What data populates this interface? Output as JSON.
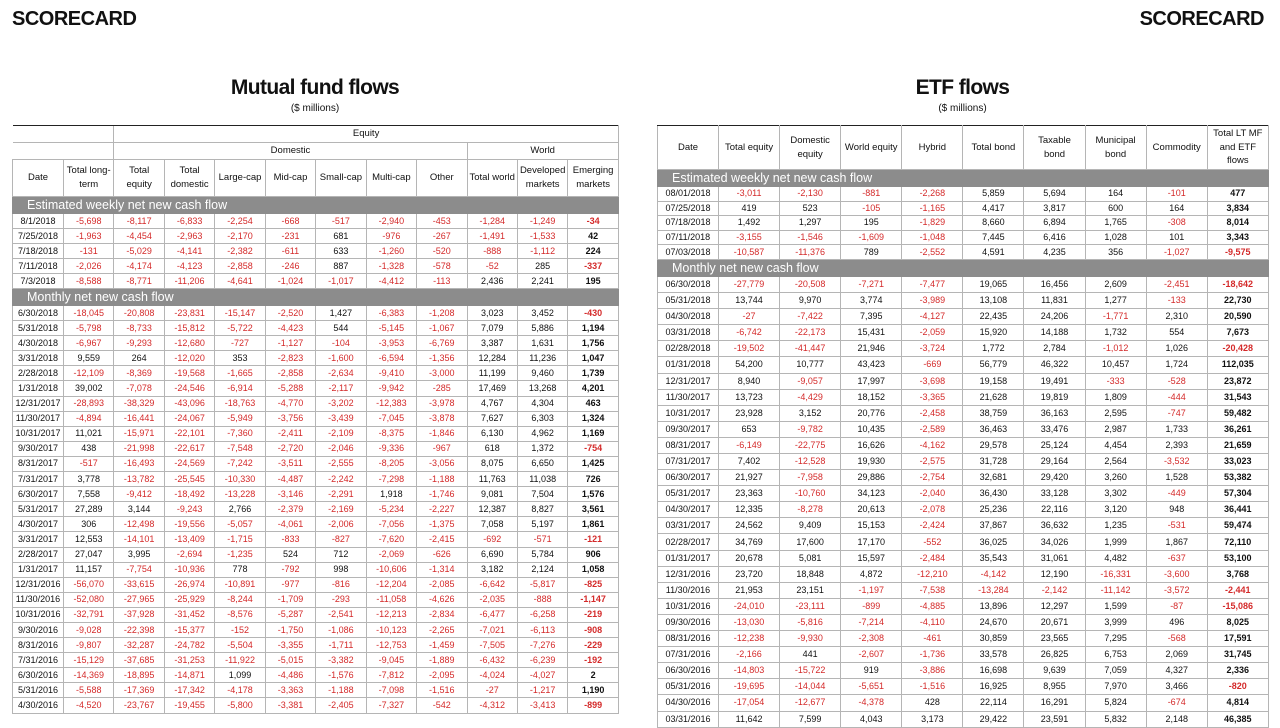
{
  "header": {
    "left_label": "SCORECARD",
    "right_label": "SCORECARD"
  },
  "mutual_fund_flows": {
    "title": "Mutual fund flows",
    "subtitle": "($ millions)",
    "group_headers": {
      "equity": "Equity",
      "domestic": "Domestic",
      "world": "World"
    },
    "columns": [
      "Date",
      "Total long-term",
      "Total equity",
      "Total domestic",
      "Large-cap",
      "Mid-cap",
      "Small-cap",
      "Multi-cap",
      "Other",
      "Total world",
      "Developed markets",
      "Emerging markets"
    ],
    "sections": [
      {
        "title": "Estimated weekly net new cash flow",
        "rows": [
          [
            "8/1/2018",
            "-5,698",
            "-8,117",
            "-6,833",
            "-2,254",
            "-668",
            "-517",
            "-2,940",
            "-453",
            "-1,284",
            "-1,249",
            "-34"
          ],
          [
            "7/25/2018",
            "-1,963",
            "-4,454",
            "-2,963",
            "-2,170",
            "-231",
            "681",
            "-976",
            "-267",
            "-1,491",
            "-1,533",
            "42"
          ],
          [
            "7/18/2018",
            "-131",
            "-5,029",
            "-4,141",
            "-2,382",
            "-611",
            "633",
            "-1,260",
            "-520",
            "-888",
            "-1,112",
            "224"
          ],
          [
            "7/11/2018",
            "-2,026",
            "-4,174",
            "-4,123",
            "-2,858",
            "-246",
            "887",
            "-1,328",
            "-578",
            "-52",
            "285",
            "-337"
          ],
          [
            "7/3/2018",
            "-8,588",
            "-8,771",
            "-11,206",
            "-4,641",
            "-1,024",
            "-1,017",
            "-4,412",
            "-113",
            "2,436",
            "2,241",
            "195"
          ]
        ]
      },
      {
        "title": "Monthly net new cash flow",
        "rows": [
          [
            "6/30/2018",
            "-18,045",
            "-20,808",
            "-23,831",
            "-15,147",
            "-2,520",
            "1,427",
            "-6,383",
            "-1,208",
            "3,023",
            "3,452",
            "-430"
          ],
          [
            "5/31/2018",
            "-5,798",
            "-8,733",
            "-15,812",
            "-5,722",
            "-4,423",
            "544",
            "-5,145",
            "-1,067",
            "7,079",
            "5,886",
            "1,194"
          ],
          [
            "4/30/2018",
            "-6,967",
            "-9,293",
            "-12,680",
            "-727",
            "-1,127",
            "-104",
            "-3,953",
            "-6,769",
            "3,387",
            "1,631",
            "1,756"
          ],
          [
            "3/31/2018",
            "9,559",
            "264",
            "-12,020",
            "353",
            "-2,823",
            "-1,600",
            "-6,594",
            "-1,356",
            "12,284",
            "11,236",
            "1,047"
          ],
          [
            "2/28/2018",
            "-12,109",
            "-8,369",
            "-19,568",
            "-1,665",
            "-2,858",
            "-2,634",
            "-9,410",
            "-3,000",
            "11,199",
            "9,460",
            "1,739"
          ],
          [
            "1/31/2018",
            "39,002",
            "-7,078",
            "-24,546",
            "-6,914",
            "-5,288",
            "-2,117",
            "-9,942",
            "-285",
            "17,469",
            "13,268",
            "4,201"
          ],
          [
            "12/31/2017",
            "-28,893",
            "-38,329",
            "-43,096",
            "-18,763",
            "-4,770",
            "-3,202",
            "-12,383",
            "-3,978",
            "4,767",
            "4,304",
            "463"
          ],
          [
            "11/30/2017",
            "-4,894",
            "-16,441",
            "-24,067",
            "-5,949",
            "-3,756",
            "-3,439",
            "-7,045",
            "-3,878",
            "7,627",
            "6,303",
            "1,324"
          ],
          [
            "10/31/2017",
            "11,021",
            "-15,971",
            "-22,101",
            "-7,360",
            "-2,411",
            "-2,109",
            "-8,375",
            "-1,846",
            "6,130",
            "4,962",
            "1,169"
          ],
          [
            "9/30/2017",
            "438",
            "-21,998",
            "-22,617",
            "-7,548",
            "-2,720",
            "-2,046",
            "-9,336",
            "-967",
            "618",
            "1,372",
            "-754"
          ],
          [
            "8/31/2017",
            "-517",
            "-16,493",
            "-24,569",
            "-7,242",
            "-3,511",
            "-2,555",
            "-8,205",
            "-3,056",
            "8,075",
            "6,650",
            "1,425"
          ],
          [
            "7/31/2017",
            "3,778",
            "-13,782",
            "-25,545",
            "-10,330",
            "-4,487",
            "-2,242",
            "-7,298",
            "-1,188",
            "11,763",
            "11,038",
            "726"
          ],
          [
            "6/30/2017",
            "7,558",
            "-9,412",
            "-18,492",
            "-13,228",
            "-3,146",
            "-2,291",
            "1,918",
            "-1,746",
            "9,081",
            "7,504",
            "1,576"
          ],
          [
            "5/31/2017",
            "27,289",
            "3,144",
            "-9,243",
            "2,766",
            "-2,379",
            "-2,169",
            "-5,234",
            "-2,227",
            "12,387",
            "8,827",
            "3,561"
          ],
          [
            "4/30/2017",
            "306",
            "-12,498",
            "-19,556",
            "-5,057",
            "-4,061",
            "-2,006",
            "-7,056",
            "-1,375",
            "7,058",
            "5,197",
            "1,861"
          ],
          [
            "3/31/2017",
            "12,553",
            "-14,101",
            "-13,409",
            "-1,715",
            "-833",
            "-827",
            "-7,620",
            "-2,415",
            "-692",
            "-571",
            "-121"
          ],
          [
            "2/28/2017",
            "27,047",
            "3,995",
            "-2,694",
            "-1,235",
            "524",
            "712",
            "-2,069",
            "-626",
            "6,690",
            "5,784",
            "906"
          ],
          [
            "1/31/2017",
            "11,157",
            "-7,754",
            "-10,936",
            "778",
            "-792",
            "998",
            "-10,606",
            "-1,314",
            "3,182",
            "2,124",
            "1,058"
          ],
          [
            "12/31/2016",
            "-56,070",
            "-33,615",
            "-26,974",
            "-10,891",
            "-977",
            "-816",
            "-12,204",
            "-2,085",
            "-6,642",
            "-5,817",
            "-825"
          ],
          [
            "11/30/2016",
            "-52,080",
            "-27,965",
            "-25,929",
            "-8,244",
            "-1,709",
            "-293",
            "-11,058",
            "-4,626",
            "-2,035",
            "-888",
            "-1,147"
          ],
          [
            "10/31/2016",
            "-32,791",
            "-37,928",
            "-31,452",
            "-8,576",
            "-5,287",
            "-2,541",
            "-12,213",
            "-2,834",
            "-6,477",
            "-6,258",
            "-219"
          ],
          [
            "9/30/2016",
            "-9,028",
            "-22,398",
            "-15,377",
            "-152",
            "-1,750",
            "-1,086",
            "-10,123",
            "-2,265",
            "-7,021",
            "-6,113",
            "-908"
          ],
          [
            "8/31/2016",
            "-9,807",
            "-32,287",
            "-24,782",
            "-5,504",
            "-3,355",
            "-1,711",
            "-12,753",
            "-1,459",
            "-7,505",
            "-7,276",
            "-229"
          ],
          [
            "7/31/2016",
            "-15,129",
            "-37,685",
            "-31,253",
            "-11,922",
            "-5,015",
            "-3,382",
            "-9,045",
            "-1,889",
            "-6,432",
            "-6,239",
            "-192"
          ],
          [
            "6/30/2016",
            "-14,369",
            "-18,895",
            "-14,871",
            "1,099",
            "-4,486",
            "-1,576",
            "-7,812",
            "-2,095",
            "-4,024",
            "-4,027",
            "2"
          ],
          [
            "5/31/2016",
            "-5,588",
            "-17,369",
            "-17,342",
            "-4,178",
            "-3,363",
            "-1,188",
            "-7,098",
            "-1,516",
            "-27",
            "-1,217",
            "1,190"
          ],
          [
            "4/30/2016",
            "-4,520",
            "-23,767",
            "-19,455",
            "-5,800",
            "-3,381",
            "-2,405",
            "-7,327",
            "-542",
            "-4,312",
            "-3,413",
            "-899"
          ]
        ]
      }
    ]
  },
  "etf_flows": {
    "title": "ETF flows",
    "subtitle": "($ millions)",
    "columns": [
      "Date",
      "Total equity",
      "Domestic equity",
      "World equity",
      "Hybrid",
      "Total bond",
      "Taxable bond",
      "Municipal bond",
      "Commodity",
      "Total LT MF and ETF flows"
    ],
    "sections": [
      {
        "title": "Estimated weekly net new cash flow",
        "rows": [
          [
            "08/01/2018",
            "-3,011",
            "-2,130",
            "-881",
            "-2,268",
            "5,859",
            "5,694",
            "164",
            "-101",
            "477"
          ],
          [
            "07/25/2018",
            "419",
            "523",
            "-105",
            "-1,165",
            "4,417",
            "3,817",
            "600",
            "164",
            "3,834"
          ],
          [
            "07/18/2018",
            "1,492",
            "1,297",
            "195",
            "-1,829",
            "8,660",
            "6,894",
            "1,765",
            "-308",
            "8,014"
          ],
          [
            "07/11/2018",
            "-3,155",
            "-1,546",
            "-1,609",
            "-1,048",
            "7,445",
            "6,416",
            "1,028",
            "101",
            "3,343"
          ],
          [
            "07/03/2018",
            "-10,587",
            "-11,376",
            "789",
            "-2,552",
            "4,591",
            "4,235",
            "356",
            "-1,027",
            "-9,575"
          ]
        ]
      },
      {
        "title": "Monthly net new cash flow",
        "rows": [
          [
            "06/30/2018",
            "-27,779",
            "-20,508",
            "-7,271",
            "-7,477",
            "19,065",
            "16,456",
            "2,609",
            "-2,451",
            "-18,642"
          ],
          [
            "05/31/2018",
            "13,744",
            "9,970",
            "3,774",
            "-3,989",
            "13,108",
            "11,831",
            "1,277",
            "-133",
            "22,730"
          ],
          [
            "04/30/2018",
            "-27",
            "-7,422",
            "7,395",
            "-4,127",
            "22,435",
            "24,206",
            "-1,771",
            "2,310",
            "20,590"
          ],
          [
            "03/31/2018",
            "-6,742",
            "-22,173",
            "15,431",
            "-2,059",
            "15,920",
            "14,188",
            "1,732",
            "554",
            "7,673"
          ],
          [
            "02/28/2018",
            "-19,502",
            "-41,447",
            "21,946",
            "-3,724",
            "1,772",
            "2,784",
            "-1,012",
            "1,026",
            "-20,428"
          ],
          [
            "01/31/2018",
            "54,200",
            "10,777",
            "43,423",
            "-669",
            "56,779",
            "46,322",
            "10,457",
            "1,724",
            "112,035"
          ],
          [
            "12/31/2017",
            "8,940",
            "-9,057",
            "17,997",
            "-3,698",
            "19,158",
            "19,491",
            "-333",
            "-528",
            "23,872"
          ],
          [
            "11/30/2017",
            "13,723",
            "-4,429",
            "18,152",
            "-3,365",
            "21,628",
            "19,819",
            "1,809",
            "-444",
            "31,543"
          ],
          [
            "10/31/2017",
            "23,928",
            "3,152",
            "20,776",
            "-2,458",
            "38,759",
            "36,163",
            "2,595",
            "-747",
            "59,482"
          ],
          [
            "09/30/2017",
            "653",
            "-9,782",
            "10,435",
            "-2,589",
            "36,463",
            "33,476",
            "2,987",
            "1,733",
            "36,261"
          ],
          [
            "08/31/2017",
            "-6,149",
            "-22,775",
            "16,626",
            "-4,162",
            "29,578",
            "25,124",
            "4,454",
            "2,393",
            "21,659"
          ],
          [
            "07/31/2017",
            "7,402",
            "-12,528",
            "19,930",
            "-2,575",
            "31,728",
            "29,164",
            "2,564",
            "-3,532",
            "33,023"
          ],
          [
            "06/30/2017",
            "21,927",
            "-7,958",
            "29,886",
            "-2,754",
            "32,681",
            "29,420",
            "3,260",
            "1,528",
            "53,382"
          ],
          [
            "05/31/2017",
            "23,363",
            "-10,760",
            "34,123",
            "-2,040",
            "36,430",
            "33,128",
            "3,302",
            "-449",
            "57,304"
          ],
          [
            "04/30/2017",
            "12,335",
            "-8,278",
            "20,613",
            "-2,078",
            "25,236",
            "22,116",
            "3,120",
            "948",
            "36,441"
          ],
          [
            "03/31/2017",
            "24,562",
            "9,409",
            "15,153",
            "-2,424",
            "37,867",
            "36,632",
            "1,235",
            "-531",
            "59,474"
          ],
          [
            "02/28/2017",
            "34,769",
            "17,600",
            "17,170",
            "-552",
            "36,025",
            "34,026",
            "1,999",
            "1,867",
            "72,110"
          ],
          [
            "01/31/2017",
            "20,678",
            "5,081",
            "15,597",
            "-2,484",
            "35,543",
            "31,061",
            "4,482",
            "-637",
            "53,100"
          ],
          [
            "12/31/2016",
            "23,720",
            "18,848",
            "4,872",
            "-12,210",
            "-4,142",
            "12,190",
            "-16,331",
            "-3,600",
            "3,768"
          ],
          [
            "11/30/2016",
            "21,953",
            "23,151",
            "-1,197",
            "-7,538",
            "-13,284",
            "-2,142",
            "-11,142",
            "-3,572",
            "-2,441"
          ],
          [
            "10/31/2016",
            "-24,010",
            "-23,111",
            "-899",
            "-4,885",
            "13,896",
            "12,297",
            "1,599",
            "-87",
            "-15,086"
          ],
          [
            "09/30/2016",
            "-13,030",
            "-5,816",
            "-7,214",
            "-4,110",
            "24,670",
            "20,671",
            "3,999",
            "496",
            "8,025"
          ],
          [
            "08/31/2016",
            "-12,238",
            "-9,930",
            "-2,308",
            "-461",
            "30,859",
            "23,565",
            "7,295",
            "-568",
            "17,591"
          ],
          [
            "07/31/2016",
            "-2,166",
            "441",
            "-2,607",
            "-1,736",
            "33,578",
            "26,825",
            "6,753",
            "2,069",
            "31,745"
          ],
          [
            "06/30/2016",
            "-14,803",
            "-15,722",
            "919",
            "-3,886",
            "16,698",
            "9,639",
            "7,059",
            "4,327",
            "2,336"
          ],
          [
            "05/31/2016",
            "-19,695",
            "-14,044",
            "-5,651",
            "-1,516",
            "16,925",
            "8,955",
            "7,970",
            "3,466",
            "-820"
          ],
          [
            "04/30/2016",
            "-17,054",
            "-12,677",
            "-4,378",
            "428",
            "22,114",
            "16,291",
            "5,824",
            "-674",
            "4,814"
          ],
          [
            "03/31/2016",
            "11,642",
            "7,599",
            "4,043",
            "3,173",
            "29,422",
            "23,591",
            "5,832",
            "2,148",
            "46,385"
          ]
        ]
      }
    ]
  }
}
